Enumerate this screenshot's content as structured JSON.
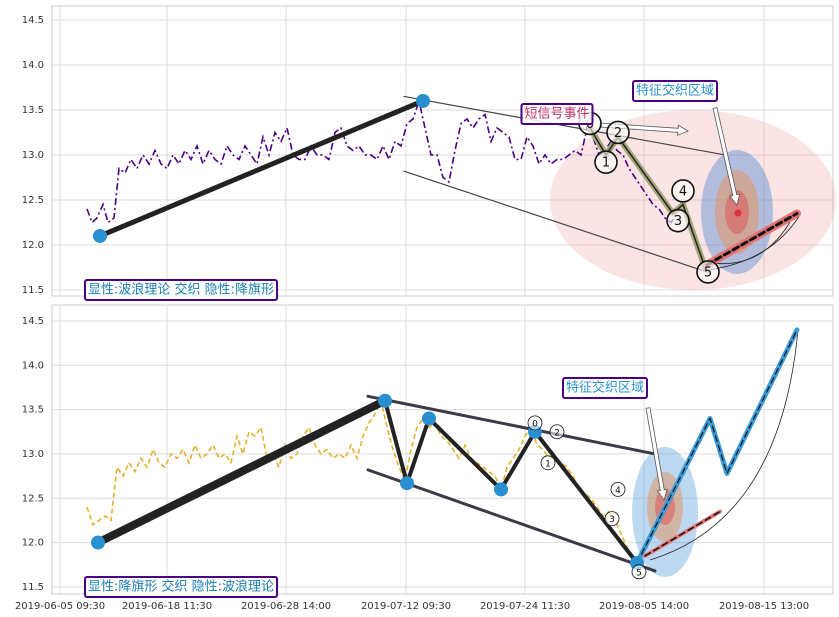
{
  "chart_data": [
    {
      "type": "line",
      "xlim": [
        52,
        833
      ],
      "ylim": [
        11.433,
        14.655
      ],
      "yticks": [
        11.5,
        {
          "value": 12,
          "label": "12.0"
        },
        12.5,
        {
          "value": 13,
          "label": "13.0"
        },
        13.5,
        {
          "value": 14,
          "label": "14.0"
        },
        14.5
      ],
      "grid": true,
      "x": [
        87,
        92,
        97,
        103,
        108,
        114,
        119,
        125,
        131,
        137,
        143,
        149,
        155,
        161,
        167,
        173,
        179,
        185,
        191,
        197,
        203,
        209,
        215,
        221,
        227,
        233,
        239,
        245,
        251,
        257,
        263,
        269,
        275,
        281,
        287,
        293,
        299,
        305,
        311,
        317,
        323,
        329,
        335,
        341,
        347,
        353,
        359,
        365,
        371,
        377,
        383,
        389,
        395,
        401,
        407,
        413,
        419,
        425,
        431,
        437,
        443,
        449,
        455,
        461,
        467,
        473,
        479,
        485,
        491,
        497,
        503,
        509,
        515,
        521,
        527,
        533,
        539,
        545,
        551,
        557,
        563,
        569,
        575,
        581,
        587,
        593,
        599,
        605,
        611,
        617,
        623,
        629,
        635,
        641,
        647,
        653,
        659,
        665,
        671,
        677,
        683,
        689,
        695,
        701,
        707
      ],
      "series": [
        {
          "color": "#4b0082",
          "dash": "dashdot",
          "values": [
            12.4,
            12.25,
            12.3,
            12.45,
            12.25,
            12.3,
            12.85,
            12.8,
            12.95,
            12.85,
            13.0,
            12.9,
            13.05,
            12.9,
            12.85,
            13.0,
            12.9,
            13.05,
            12.95,
            13.1,
            12.9,
            13.05,
            12.95,
            12.9,
            13.1,
            13.0,
            12.95,
            13.1,
            13.0,
            12.9,
            13.2,
            13.0,
            13.25,
            13.15,
            13.3,
            13.0,
            12.95,
            12.95,
            13.1,
            13.0,
            13.0,
            12.95,
            13.25,
            13.3,
            13.1,
            13.05,
            13.1,
            13.0,
            13.0,
            12.95,
            13.1,
            12.95,
            13.15,
            13.1,
            13.35,
            13.4,
            13.6,
            13.3,
            13.0,
            13.0,
            12.75,
            12.7,
            13.05,
            13.35,
            13.4,
            13.3,
            13.4,
            13.45,
            13.15,
            13.3,
            13.25,
            13.2,
            12.95,
            12.95,
            13.2,
            13.1,
            12.9,
            13.0,
            12.9,
            12.95,
            12.95,
            13.0,
            13.05,
            13.0,
            13.3,
            13.2,
            13.0,
            13.05,
            13.15,
            13.05,
            13.0,
            12.85,
            12.75,
            12.65,
            12.55,
            12.45,
            12.4,
            12.3,
            12.25,
            12.35,
            12.45,
            12.3,
            12.05,
            11.85,
            11.75
          ]
        }
      ],
      "overlays": [
        {
          "color": "#222222",
          "width": 5,
          "x": [
            100,
            423
          ],
          "y": [
            12.1,
            13.6
          ]
        },
        {
          "color": "#444444",
          "width": 1.2,
          "x": [
            404,
            725
          ],
          "y": [
            13.65,
            13.0
          ]
        },
        {
          "color": "#444444",
          "width": 1.2,
          "x": [
            404,
            707
          ],
          "y": [
            12.82,
            11.7
          ]
        },
        {
          "color": "#a4a67a",
          "width": 6,
          "x": [
            590,
            606,
            618,
            673,
            683,
            705
          ],
          "y": [
            13.3,
            13.0,
            13.2,
            12.35,
            12.45,
            11.75
          ]
        },
        {
          "color": "#222222",
          "width": 1.5,
          "x": [
            590,
            606,
            618,
            673,
            683,
            705
          ],
          "y": [
            13.3,
            13.0,
            13.2,
            12.35,
            12.45,
            11.75
          ]
        },
        {
          "color": "#e57373",
          "width": 8,
          "x": [
            707,
            797
          ],
          "y": [
            11.78,
            12.35
          ]
        },
        {
          "color": "#111111",
          "width": 3,
          "dash": true,
          "x": [
            707,
            797
          ],
          "y": [
            11.78,
            12.35
          ]
        }
      ],
      "points": {
        "color": "#2a8fd0",
        "x": [
          100,
          423
        ],
        "y": [
          12.1,
          13.6
        ]
      },
      "waves": {
        "labels": [
          "0",
          "1",
          "2",
          "3",
          "4",
          "5"
        ],
        "x": [
          590,
          606,
          618,
          678,
          683,
          708
        ],
        "y": [
          13.35,
          12.92,
          13.25,
          12.27,
          12.6,
          11.7
        ]
      },
      "annotations": [
        "短信号事件",
        "特征交织区域"
      ],
      "pattern_label": "显性:波浪理论 交织 隐性:降旗形"
    },
    {
      "type": "line",
      "xlim": [
        52,
        833
      ],
      "ylim": [
        11.42,
        14.68
      ],
      "yticks": [
        11.5,
        {
          "value": 12,
          "label": "12.0"
        },
        12.5,
        {
          "value": 13,
          "label": "13.0"
        },
        13.5,
        {
          "value": 14,
          "label": "14.0"
        },
        14.5
      ],
      "xticks": [
        {
          "value": 60,
          "label": "2019-06-05 09:30"
        },
        {
          "value": 167,
          "label": "2019-06-18 11:30"
        },
        {
          "value": 286,
          "label": "2019-06-28 14:00"
        },
        {
          "value": 406,
          "label": "2019-07-12 09:30"
        },
        {
          "value": 525,
          "label": "2019-07-24 11:30"
        },
        {
          "value": 644,
          "label": "2019-08-05 14:00"
        },
        {
          "value": 764,
          "label": "2019-08-15 13:00"
        }
      ],
      "grid": true,
      "x": [
        87,
        93,
        99,
        105,
        111,
        117,
        123,
        129,
        135,
        141,
        147,
        153,
        159,
        165,
        171,
        177,
        183,
        189,
        195,
        201,
        207,
        213,
        219,
        225,
        231,
        237,
        243,
        249,
        255,
        261,
        267,
        273,
        279,
        285,
        291,
        297,
        303,
        309,
        315,
        321,
        327,
        333,
        339,
        345,
        351,
        357,
        363,
        369,
        375,
        381,
        387,
        393,
        399,
        405,
        411,
        417,
        423,
        429,
        435,
        441,
        447,
        453,
        459,
        465,
        471,
        477,
        483,
        489,
        495,
        501,
        507,
        513,
        519,
        525,
        531,
        537,
        543,
        549,
        555,
        561,
        567,
        573,
        579,
        585,
        591,
        597,
        603,
        609,
        615,
        621,
        627,
        633,
        637
      ],
      "series": [
        {
          "color": "#e6b030",
          "dash": "dash",
          "values": [
            12.4,
            12.2,
            12.25,
            12.3,
            12.25,
            12.85,
            12.75,
            12.9,
            12.8,
            12.95,
            12.85,
            13.05,
            12.9,
            12.85,
            13.0,
            12.95,
            13.05,
            12.9,
            13.1,
            12.95,
            13.0,
            13.1,
            12.95,
            13.0,
            12.9,
            13.2,
            13.0,
            13.25,
            13.2,
            13.3,
            12.95,
            13.0,
            12.85,
            13.1,
            12.95,
            13.0,
            13.2,
            13.3,
            13.1,
            13.0,
            13.05,
            12.95,
            13.0,
            12.95,
            13.1,
            12.95,
            13.2,
            13.35,
            13.45,
            13.6,
            13.3,
            13.05,
            12.85,
            12.7,
            13.05,
            13.3,
            13.4,
            13.3,
            13.35,
            13.2,
            13.15,
            13.05,
            12.95,
            13.1,
            12.95,
            12.9,
            12.85,
            12.8,
            12.75,
            12.6,
            12.85,
            12.95,
            13.05,
            13.2,
            13.3,
            13.1,
            13.05,
            12.95,
            12.95,
            12.9,
            12.85,
            12.75,
            12.6,
            12.55,
            12.5,
            12.4,
            12.3,
            12.35,
            12.25,
            12.1,
            11.95,
            11.85,
            11.75
          ]
        }
      ],
      "overlays": [
        {
          "color": "#222222",
          "width": 8,
          "x": [
            98,
            385
          ],
          "y": [
            12.0,
            13.6
          ]
        },
        {
          "color": "#3a3a48",
          "width": 3,
          "x": [
            368,
            655
          ],
          "y": [
            13.65,
            13.0
          ]
        },
        {
          "color": "#3a3a48",
          "width": 3,
          "x": [
            368,
            655
          ],
          "y": [
            12.82,
            11.68
          ]
        },
        {
          "color": "#222222",
          "width": 4,
          "x": [
            385,
            407,
            429,
            501,
            535,
            637
          ],
          "y": [
            13.6,
            12.67,
            13.4,
            12.6,
            13.25,
            11.77
          ]
        },
        {
          "color": "#3a9ad9",
          "width": 5,
          "x": [
            637,
            710,
            727,
            797
          ],
          "y": [
            11.77,
            13.4,
            12.78,
            14.4
          ]
        },
        {
          "color": "#111111",
          "width": 1.2,
          "dash": true,
          "x": [
            637,
            710,
            727,
            797
          ],
          "y": [
            11.77,
            13.4,
            12.78,
            14.4
          ]
        },
        {
          "color": "#e57373",
          "width": 4,
          "x": [
            645,
            720
          ],
          "y": [
            11.85,
            12.35
          ]
        },
        {
          "color": "#111111",
          "width": 1.5,
          "dash": true,
          "x": [
            645,
            720
          ],
          "y": [
            11.85,
            12.35
          ]
        }
      ],
      "points": {
        "color": "#2a8fd0",
        "x": [
          98,
          385,
          407,
          429,
          501,
          535,
          637
        ],
        "y": [
          12.0,
          13.6,
          12.67,
          13.4,
          12.6,
          13.25,
          11.77
        ]
      },
      "waves": {
        "labels": [
          "0",
          "2",
          "1",
          "4",
          "3",
          "5"
        ],
        "x": [
          535,
          557,
          548,
          618,
          612,
          639
        ],
        "y": [
          13.35,
          13.25,
          12.9,
          12.6,
          12.27,
          11.67
        ]
      },
      "annotations": [
        "特征交织区域"
      ],
      "pattern_label": "显性:降旗形 交织 隐性:波浪理论"
    }
  ]
}
